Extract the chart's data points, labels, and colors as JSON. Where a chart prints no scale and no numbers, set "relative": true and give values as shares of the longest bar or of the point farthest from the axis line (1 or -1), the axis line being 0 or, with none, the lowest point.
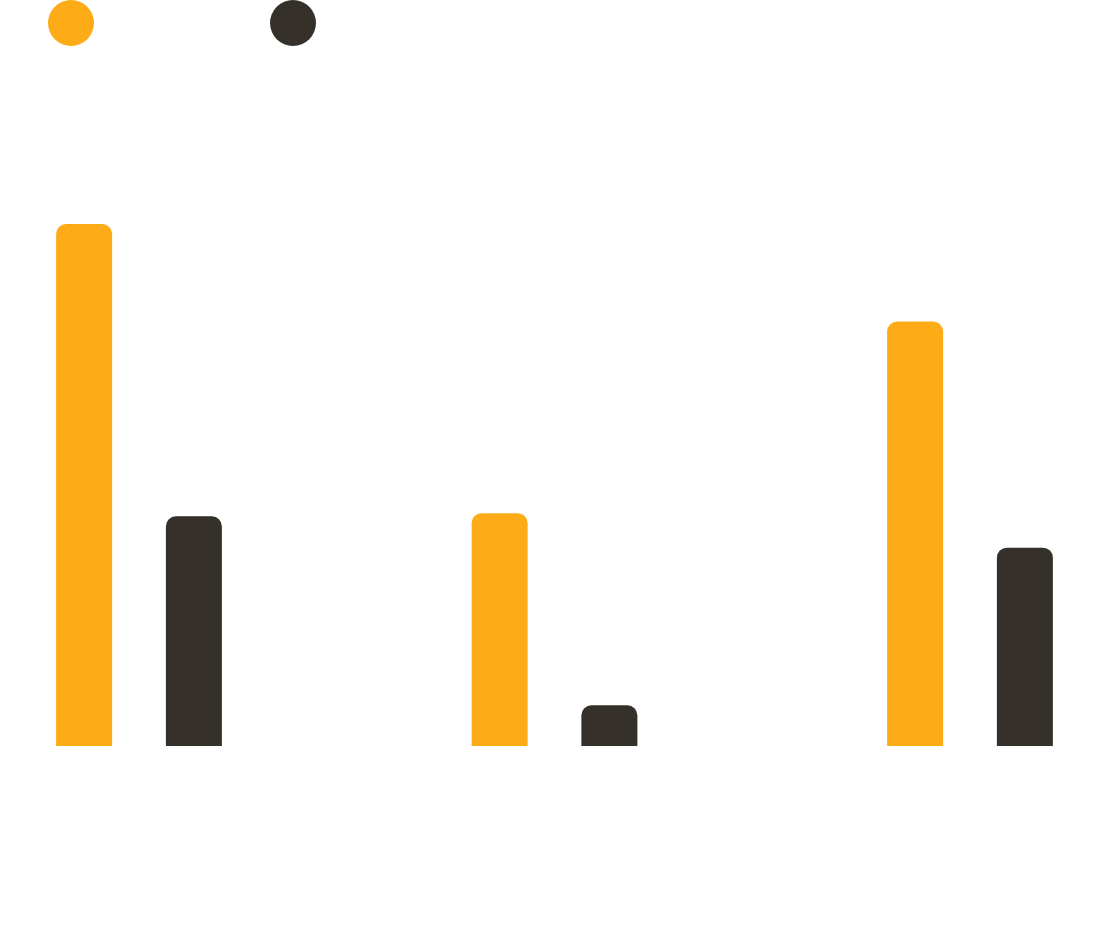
{
  "chart_data": {
    "type": "bar",
    "relative": true,
    "categories": [
      null,
      null,
      null
    ],
    "series": [
      {
        "color": "#fdab16",
        "values": [
          1,
          0.446,
          0.813
        ]
      },
      {
        "color": "#35312a",
        "values": [
          0.44,
          0.078,
          0.38
        ]
      }
    ]
  }
}
